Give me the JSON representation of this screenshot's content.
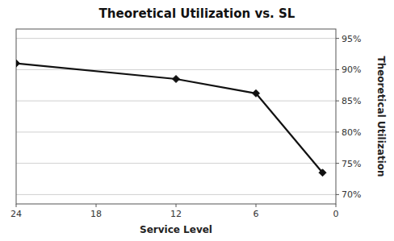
{
  "chart_data": {
    "type": "line",
    "title": "Theoretical Utilization vs. SL",
    "xlabel": "Service Level",
    "ylabel": "Theoretical Utilization",
    "x": [
      24,
      12,
      6,
      1
    ],
    "values": [
      0.91,
      0.885,
      0.862,
      0.735
    ],
    "color": "#111111",
    "marker": "diamond",
    "xlim": [
      24,
      0
    ],
    "xticks": [
      0,
      6,
      12,
      18,
      24
    ],
    "ylim": [
      0.685,
      0.965
    ],
    "yticks": [
      {
        "value": 0.7,
        "label": "70%"
      },
      {
        "value": 0.75,
        "label": "75%"
      },
      {
        "value": 0.8,
        "label": "80%"
      },
      {
        "value": 0.85,
        "label": "85%"
      },
      {
        "value": 0.9,
        "label": "90%"
      },
      {
        "value": 0.95,
        "label": "95%"
      }
    ],
    "grid": true
  }
}
